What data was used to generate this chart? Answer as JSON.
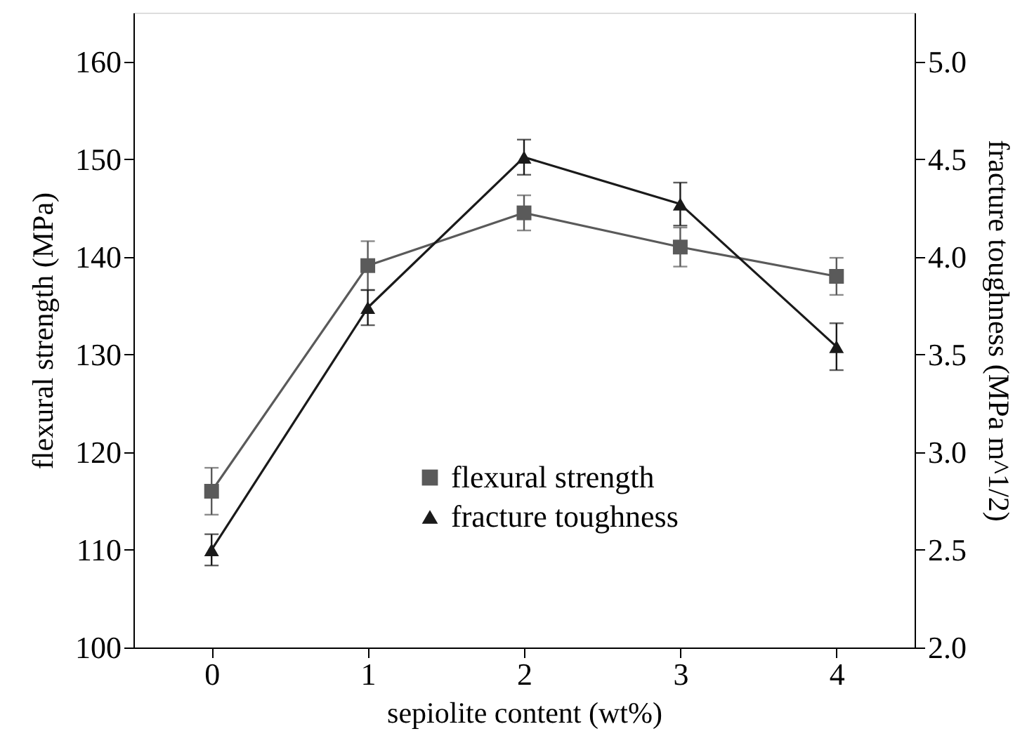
{
  "chart_data": {
    "type": "line",
    "xlabel": "sepiolite content (wt%)",
    "ylabel": "flexural strength (MPa)",
    "y2label": "fracture toughness (MPa m^1/2)",
    "x": [
      0,
      1,
      2,
      3,
      4
    ],
    "xlim": [
      -0.5,
      4.5
    ],
    "xticks": [
      0,
      1,
      2,
      3,
      4
    ],
    "ylim": [
      100,
      165
    ],
    "yticks": [
      100,
      110,
      120,
      130,
      140,
      150,
      160
    ],
    "y2lim": [
      2.0,
      5.25
    ],
    "y2ticks": [
      {
        "value": 2.0,
        "label": "2.0"
      },
      {
        "value": 2.5,
        "label": "2.5"
      },
      {
        "value": 3.0,
        "label": "3.0"
      },
      {
        "value": 3.5,
        "label": "3.5"
      },
      {
        "value": 4.0,
        "label": "4.0"
      },
      {
        "value": 4.5,
        "label": "4.5"
      },
      {
        "value": 5.0,
        "label": "5.0"
      }
    ],
    "legend": "bottom",
    "grid": false,
    "series": [
      {
        "name": "flexural strength",
        "color": "#5a5a5a",
        "marker": "square",
        "values": [
          116,
          139.1,
          144.5,
          141.0,
          138.0
        ],
        "errors": [
          2.4,
          2.5,
          1.8,
          2.0,
          1.9
        ]
      },
      {
        "name": "fracture toughness",
        "color": "#1a1a1a",
        "marker": "triangle",
        "axis": "y2",
        "values": [
          2.5,
          3.74,
          4.51,
          4.27,
          3.54
        ],
        "errors": [
          0.08,
          0.09,
          0.09,
          0.11,
          0.12
        ]
      }
    ]
  }
}
